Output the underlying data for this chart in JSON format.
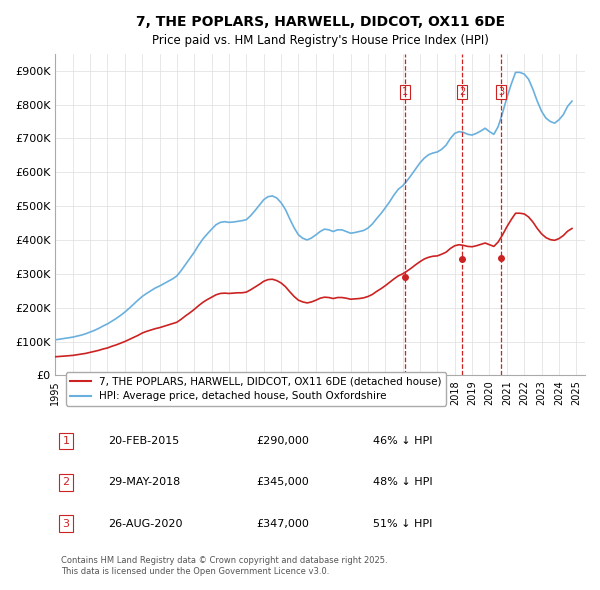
{
  "title": "7, THE POPLARS, HARWELL, DIDCOT, OX11 6DE",
  "subtitle": "Price paid vs. HM Land Registry's House Price Index (HPI)",
  "xlabel": "",
  "ylabel": "",
  "ylim": [
    0,
    950000
  ],
  "yticks": [
    0,
    100000,
    200000,
    300000,
    400000,
    500000,
    600000,
    700000,
    800000,
    900000
  ],
  "ytick_labels": [
    "£0",
    "£100K",
    "£200K",
    "£300K",
    "£400K",
    "£500K",
    "£600K",
    "£700K",
    "£800K",
    "£900K"
  ],
  "hpi_color": "#6ab0de",
  "price_color": "#cc2222",
  "vline_color": "#cc2222",
  "background_color": "#ffffff",
  "grid_color": "#dddddd",
  "legend_label_red": "7, THE POPLARS, HARWELL, DIDCOT, OX11 6DE (detached house)",
  "legend_label_blue": "HPI: Average price, detached house, South Oxfordshire",
  "sale_dates": [
    "2015-02-20",
    "2018-05-29",
    "2020-08-26"
  ],
  "sale_prices": [
    290000,
    345000,
    347000
  ],
  "sale_labels": [
    "1",
    "2",
    "3"
  ],
  "table_rows": [
    [
      "1",
      "20-FEB-2015",
      "£290,000",
      "46% ↓ HPI"
    ],
    [
      "2",
      "29-MAY-2018",
      "£345,000",
      "48% ↓ HPI"
    ],
    [
      "3",
      "26-AUG-2020",
      "£347,000",
      "51% ↓ HPI"
    ]
  ],
  "footnote": "Contains HM Land Registry data © Crown copyright and database right 2025.\nThis data is licensed under the Open Government Licence v3.0.",
  "hpi_x": [
    1995.0,
    1995.25,
    1995.5,
    1995.75,
    1996.0,
    1996.25,
    1996.5,
    1996.75,
    1997.0,
    1997.25,
    1997.5,
    1997.75,
    1998.0,
    1998.25,
    1998.5,
    1998.75,
    1999.0,
    1999.25,
    1999.5,
    1999.75,
    2000.0,
    2000.25,
    2000.5,
    2000.75,
    2001.0,
    2001.25,
    2001.5,
    2001.75,
    2002.0,
    2002.25,
    2002.5,
    2002.75,
    2003.0,
    2003.25,
    2003.5,
    2003.75,
    2004.0,
    2004.25,
    2004.5,
    2004.75,
    2005.0,
    2005.25,
    2005.5,
    2005.75,
    2006.0,
    2006.25,
    2006.5,
    2006.75,
    2007.0,
    2007.25,
    2007.5,
    2007.75,
    2008.0,
    2008.25,
    2008.5,
    2008.75,
    2009.0,
    2009.25,
    2009.5,
    2009.75,
    2010.0,
    2010.25,
    2010.5,
    2010.75,
    2011.0,
    2011.25,
    2011.5,
    2011.75,
    2012.0,
    2012.25,
    2012.5,
    2012.75,
    2013.0,
    2013.25,
    2013.5,
    2013.75,
    2014.0,
    2014.25,
    2014.5,
    2014.75,
    2015.0,
    2015.25,
    2015.5,
    2015.75,
    2016.0,
    2016.25,
    2016.5,
    2016.75,
    2017.0,
    2017.25,
    2017.5,
    2017.75,
    2018.0,
    2018.25,
    2018.5,
    2018.75,
    2019.0,
    2019.25,
    2019.5,
    2019.75,
    2020.0,
    2020.25,
    2020.5,
    2020.75,
    2021.0,
    2021.25,
    2021.5,
    2021.75,
    2022.0,
    2022.25,
    2022.5,
    2022.75,
    2023.0,
    2023.25,
    2023.5,
    2023.75,
    2024.0,
    2024.25,
    2024.5,
    2024.75
  ],
  "hpi_y": [
    105000,
    107000,
    109000,
    111000,
    113000,
    116000,
    119000,
    123000,
    128000,
    133000,
    139000,
    146000,
    152000,
    160000,
    168000,
    177000,
    187000,
    198000,
    210000,
    222000,
    233000,
    242000,
    250000,
    258000,
    264000,
    271000,
    278000,
    285000,
    294000,
    310000,
    328000,
    346000,
    364000,
    385000,
    403000,
    418000,
    432000,
    445000,
    452000,
    454000,
    452000,
    453000,
    455000,
    457000,
    460000,
    472000,
    487000,
    503000,
    519000,
    528000,
    530000,
    524000,
    510000,
    490000,
    462000,
    436000,
    415000,
    405000,
    400000,
    406000,
    415000,
    425000,
    432000,
    430000,
    425000,
    430000,
    430000,
    425000,
    420000,
    422000,
    425000,
    428000,
    435000,
    447000,
    463000,
    478000,
    495000,
    513000,
    533000,
    550000,
    560000,
    575000,
    592000,
    610000,
    628000,
    642000,
    652000,
    657000,
    660000,
    668000,
    680000,
    700000,
    715000,
    720000,
    718000,
    712000,
    710000,
    715000,
    722000,
    730000,
    720000,
    712000,
    735000,
    775000,
    820000,
    860000,
    895000,
    895000,
    890000,
    875000,
    845000,
    810000,
    780000,
    760000,
    750000,
    745000,
    755000,
    770000,
    795000,
    810000
  ],
  "price_x": [
    1995.0,
    1995.25,
    1995.5,
    1995.75,
    1996.0,
    1996.25,
    1996.5,
    1996.75,
    1997.0,
    1997.25,
    1997.5,
    1997.75,
    1998.0,
    1998.25,
    1998.5,
    1998.75,
    1999.0,
    1999.25,
    1999.5,
    1999.75,
    2000.0,
    2000.25,
    2000.5,
    2000.75,
    2001.0,
    2001.25,
    2001.5,
    2001.75,
    2002.0,
    2002.25,
    2002.5,
    2002.75,
    2003.0,
    2003.25,
    2003.5,
    2003.75,
    2004.0,
    2004.25,
    2004.5,
    2004.75,
    2005.0,
    2005.25,
    2005.5,
    2005.75,
    2006.0,
    2006.25,
    2006.5,
    2006.75,
    2007.0,
    2007.25,
    2007.5,
    2007.75,
    2008.0,
    2008.25,
    2008.5,
    2008.75,
    2009.0,
    2009.25,
    2009.5,
    2009.75,
    2010.0,
    2010.25,
    2010.5,
    2010.75,
    2011.0,
    2011.25,
    2011.5,
    2011.75,
    2012.0,
    2012.25,
    2012.5,
    2012.75,
    2013.0,
    2013.25,
    2013.5,
    2013.75,
    2014.0,
    2014.25,
    2014.5,
    2014.75,
    2015.0,
    2015.25,
    2015.5,
    2015.75,
    2016.0,
    2016.25,
    2016.5,
    2016.75,
    2017.0,
    2017.25,
    2017.5,
    2017.75,
    2018.0,
    2018.25,
    2018.5,
    2018.75,
    2019.0,
    2019.25,
    2019.5,
    2019.75,
    2020.0,
    2020.25,
    2020.5,
    2020.75,
    2021.0,
    2021.25,
    2021.5,
    2021.75,
    2022.0,
    2022.25,
    2022.5,
    2022.75,
    2023.0,
    2023.25,
    2023.5,
    2023.75,
    2024.0,
    2024.25,
    2024.5,
    2024.75
  ],
  "price_y": [
    55000,
    56000,
    57000,
    58000,
    59000,
    61000,
    63000,
    65000,
    68000,
    71000,
    74000,
    78000,
    81000,
    86000,
    90000,
    95000,
    100000,
    106000,
    112000,
    118000,
    125000,
    130000,
    134000,
    138000,
    141000,
    145000,
    149000,
    153000,
    157000,
    166000,
    176000,
    185000,
    195000,
    206000,
    216000,
    224000,
    231000,
    238000,
    242000,
    243000,
    242000,
    243000,
    244000,
    244000,
    246000,
    253000,
    261000,
    269000,
    278000,
    283000,
    284000,
    280000,
    273000,
    262000,
    247000,
    233000,
    222000,
    217000,
    214000,
    217000,
    222000,
    228000,
    231000,
    230000,
    227000,
    230000,
    230000,
    228000,
    225000,
    226000,
    227000,
    229000,
    233000,
    239000,
    248000,
    256000,
    265000,
    275000,
    285000,
    294000,
    300000,
    308000,
    317000,
    327000,
    336000,
    344000,
    349000,
    352000,
    353000,
    358000,
    364000,
    375000,
    383000,
    386000,
    384000,
    381000,
    380000,
    383000,
    387000,
    391000,
    386000,
    381000,
    394000,
    415000,
    439000,
    460000,
    479000,
    479000,
    477000,
    468000,
    453000,
    434000,
    418000,
    407000,
    401000,
    399000,
    404000,
    413000,
    426000,
    434000
  ]
}
